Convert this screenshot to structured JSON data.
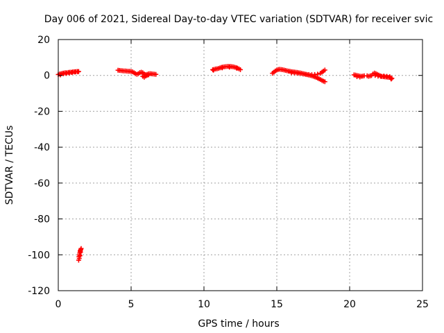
{
  "chart_data": {
    "type": "scatter",
    "title": "Day 006 of 2021, Sidereal Day-to-day VTEC variation (SDTVAR) for receiver svic",
    "xlabel": "GPS time / hours",
    "ylabel": "SDTVAR / TECUs",
    "xlim": [
      0,
      25
    ],
    "ylim": [
      -120,
      20
    ],
    "xticks": [
      0,
      5,
      10,
      15,
      20,
      25
    ],
    "yticks": [
      20,
      0,
      -20,
      -40,
      -60,
      -80,
      -100,
      -120
    ],
    "grid": true,
    "marker": "plus",
    "color": "#ff0000",
    "series": [
      {
        "points": [
          [
            0.0,
            0.5
          ],
          [
            0.1,
            0.8
          ],
          [
            0.2,
            1.0
          ],
          [
            0.3,
            1.2
          ],
          [
            0.4,
            1.4
          ],
          [
            0.5,
            1.5
          ],
          [
            0.6,
            1.5
          ],
          [
            0.7,
            1.7
          ],
          [
            0.8,
            1.8
          ],
          [
            0.9,
            1.8
          ],
          [
            1.0,
            2.0
          ],
          [
            1.1,
            2.0
          ],
          [
            1.2,
            2.1
          ],
          [
            1.3,
            2.2
          ],
          [
            1.4,
            2.2
          ],
          [
            0.15,
            0.3
          ],
          [
            0.35,
            0.9
          ],
          [
            0.55,
            1.1
          ],
          [
            0.75,
            1.3
          ],
          [
            0.95,
            1.6
          ],
          [
            1.15,
            1.9
          ],
          [
            1.35,
            2.0
          ],
          [
            1.4,
            -103
          ],
          [
            1.42,
            -101
          ],
          [
            1.45,
            -100
          ],
          [
            1.47,
            -99
          ],
          [
            1.5,
            -98
          ],
          [
            1.52,
            -97.5
          ],
          [
            1.55,
            -97
          ],
          [
            1.57,
            -96.5
          ],
          [
            1.44,
            -102
          ],
          [
            1.49,
            -100.5
          ],
          [
            1.53,
            -98.5
          ],
          [
            4.1,
            2.9
          ],
          [
            4.2,
            2.8
          ],
          [
            4.3,
            2.7
          ],
          [
            4.4,
            2.6
          ],
          [
            4.5,
            2.5
          ],
          [
            4.6,
            2.5
          ],
          [
            4.7,
            2.4
          ],
          [
            4.8,
            2.3
          ],
          [
            4.9,
            2.3
          ],
          [
            5.0,
            2.2
          ],
          [
            5.1,
            2.0
          ],
          [
            5.2,
            1.5
          ],
          [
            5.3,
            1.0
          ],
          [
            5.4,
            0.6
          ],
          [
            5.5,
            1.0
          ],
          [
            5.6,
            1.6
          ],
          [
            5.7,
            1.8
          ],
          [
            5.8,
            1.5
          ],
          [
            5.9,
            0.8
          ],
          [
            6.0,
            0.4
          ],
          [
            6.1,
            0.6
          ],
          [
            6.2,
            0.9
          ],
          [
            6.3,
            1.0
          ],
          [
            6.4,
            0.9
          ],
          [
            6.5,
            0.8
          ],
          [
            6.6,
            0.7
          ],
          [
            6.7,
            0.6
          ],
          [
            5.8,
            -0.5
          ],
          [
            5.9,
            -1.0
          ],
          [
            6.0,
            -0.4
          ],
          [
            6.1,
            0.1
          ],
          [
            6.2,
            0.3
          ],
          [
            10.6,
            3.2
          ],
          [
            10.7,
            3.4
          ],
          [
            10.8,
            3.6
          ],
          [
            10.9,
            3.7
          ],
          [
            11.0,
            3.9
          ],
          [
            11.1,
            4.2
          ],
          [
            11.2,
            4.5
          ],
          [
            11.3,
            4.7
          ],
          [
            11.4,
            4.8
          ],
          [
            11.5,
            4.9
          ],
          [
            11.6,
            5.0
          ],
          [
            11.7,
            5.0
          ],
          [
            11.8,
            5.0
          ],
          [
            11.9,
            4.9
          ],
          [
            12.0,
            4.8
          ],
          [
            12.1,
            4.6
          ],
          [
            12.2,
            4.4
          ],
          [
            12.3,
            4.1
          ],
          [
            12.4,
            3.7
          ],
          [
            12.5,
            3.2
          ],
          [
            10.65,
            2.9
          ],
          [
            11.25,
            4.2
          ],
          [
            11.75,
            4.6
          ],
          [
            12.25,
            4.0
          ],
          [
            14.7,
            1.2
          ],
          [
            14.8,
            1.8
          ],
          [
            14.9,
            2.5
          ],
          [
            15.0,
            3.0
          ],
          [
            15.1,
            3.3
          ],
          [
            15.2,
            3.4
          ],
          [
            15.3,
            3.3
          ],
          [
            15.4,
            3.2
          ],
          [
            15.5,
            3.0
          ],
          [
            15.6,
            2.8
          ],
          [
            15.7,
            2.6
          ],
          [
            15.8,
            2.4
          ],
          [
            15.9,
            2.3
          ],
          [
            16.0,
            2.1
          ],
          [
            16.1,
            2.0
          ],
          [
            16.2,
            1.9
          ],
          [
            16.3,
            1.8
          ],
          [
            16.4,
            1.7
          ],
          [
            16.5,
            1.5
          ],
          [
            16.6,
            1.4
          ],
          [
            16.7,
            1.2
          ],
          [
            16.8,
            1.0
          ],
          [
            16.9,
            0.8
          ],
          [
            17.0,
            0.6
          ],
          [
            17.1,
            0.4
          ],
          [
            17.2,
            0.2
          ],
          [
            17.3,
            0.0
          ],
          [
            17.4,
            -0.2
          ],
          [
            17.5,
            -0.5
          ],
          [
            17.6,
            -0.8
          ],
          [
            17.7,
            -1.1
          ],
          [
            17.8,
            -1.5
          ],
          [
            17.9,
            -1.9
          ],
          [
            18.0,
            -2.3
          ],
          [
            18.1,
            -2.8
          ],
          [
            18.2,
            -3.2
          ],
          [
            18.3,
            -3.5
          ],
          [
            16.0,
            1.5
          ],
          [
            16.2,
            1.4
          ],
          [
            16.4,
            1.2
          ],
          [
            16.6,
            1.0
          ],
          [
            16.8,
            0.8
          ],
          [
            17.0,
            0.6
          ],
          [
            17.2,
            0.5
          ],
          [
            17.4,
            0.4
          ],
          [
            17.6,
            0.5
          ],
          [
            17.8,
            0.7
          ],
          [
            18.0,
            1.2
          ],
          [
            18.1,
            1.8
          ],
          [
            18.2,
            2.4
          ],
          [
            18.3,
            3.0
          ],
          [
            20.3,
            0.3
          ],
          [
            20.4,
            0.2
          ],
          [
            20.5,
            0.0
          ],
          [
            20.6,
            -0.2
          ],
          [
            20.7,
            -0.4
          ],
          [
            20.8,
            -0.5
          ],
          [
            20.9,
            -0.4
          ],
          [
            21.0,
            -0.2
          ],
          [
            20.5,
            -0.7
          ],
          [
            20.7,
            -0.9
          ],
          [
            21.2,
            -0.2
          ],
          [
            21.3,
            -0.5
          ],
          [
            21.4,
            -0.3
          ],
          [
            21.5,
            -0.1
          ],
          [
            21.6,
            0.8
          ],
          [
            21.7,
            1.3
          ],
          [
            21.8,
            1.0
          ],
          [
            21.9,
            0.6
          ],
          [
            22.0,
            0.2
          ],
          [
            22.1,
            -0.2
          ],
          [
            22.2,
            -0.5
          ],
          [
            22.3,
            -0.7
          ],
          [
            22.4,
            -0.8
          ],
          [
            22.5,
            -0.9
          ],
          [
            22.6,
            -1.0
          ],
          [
            22.7,
            -1.1
          ],
          [
            22.8,
            -1.3
          ],
          [
            22.9,
            -1.6
          ],
          [
            21.75,
            0.0
          ],
          [
            21.95,
            -0.4
          ],
          [
            22.15,
            -0.6
          ],
          [
            22.35,
            -0.3
          ],
          [
            22.55,
            -0.5
          ],
          [
            22.75,
            -0.7
          ],
          [
            22.85,
            -2.0
          ]
        ]
      }
    ]
  }
}
